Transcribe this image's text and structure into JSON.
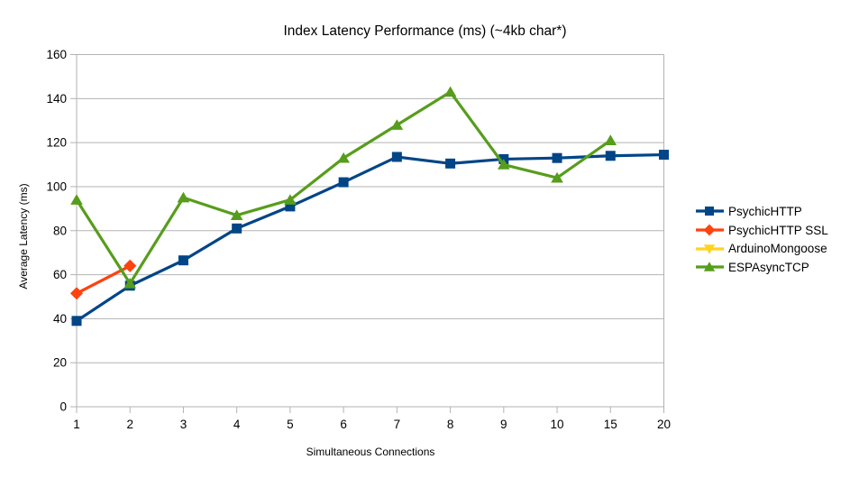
{
  "page": {
    "background": "#ffffff"
  },
  "style": {
    "grid_color": "#b3b3b3",
    "axis_color": "#b3b3b3",
    "text_color": "#000000",
    "tick_font_size": 13.5,
    "line_width": 3.2,
    "marker_size": 11
  },
  "chart_data": {
    "type": "line",
    "title": "Index Latency Performance (ms) (~4kb char*)",
    "xlabel": "Simultaneous Connections",
    "ylabel": "Average Latency (ms)",
    "categories": [
      "1",
      "2",
      "3",
      "4",
      "5",
      "6",
      "7",
      "8",
      "9",
      "10",
      "15",
      "20"
    ],
    "ylim": [
      0,
      160
    ],
    "yticks": [
      0,
      20,
      40,
      60,
      80,
      100,
      120,
      140,
      160
    ],
    "grid": true,
    "legend_position": "right",
    "series": [
      {
        "name": "PsychicHTTP",
        "color": "#004586",
        "marker": "square",
        "values": [
          39,
          55,
          66.5,
          81,
          91,
          102,
          113.5,
          110.5,
          112.5,
          113,
          114,
          114.5
        ]
      },
      {
        "name": "PsychicHTTP SSL",
        "color": "#FF420E",
        "marker": "diamond",
        "values": [
          51.5,
          64,
          null,
          null,
          null,
          null,
          null,
          null,
          null,
          null,
          null,
          null
        ]
      },
      {
        "name": "ArduinoMongoose",
        "color": "#FFD320",
        "marker": "triangle-down",
        "values": [
          null,
          null,
          null,
          null,
          null,
          null,
          null,
          null,
          null,
          null,
          null,
          null
        ]
      },
      {
        "name": "ESPAsyncTCP",
        "color": "#579D1C",
        "marker": "triangle-up",
        "values": [
          94,
          56,
          95,
          87,
          94,
          113,
          128,
          143,
          110,
          104,
          121,
          null
        ]
      }
    ]
  }
}
